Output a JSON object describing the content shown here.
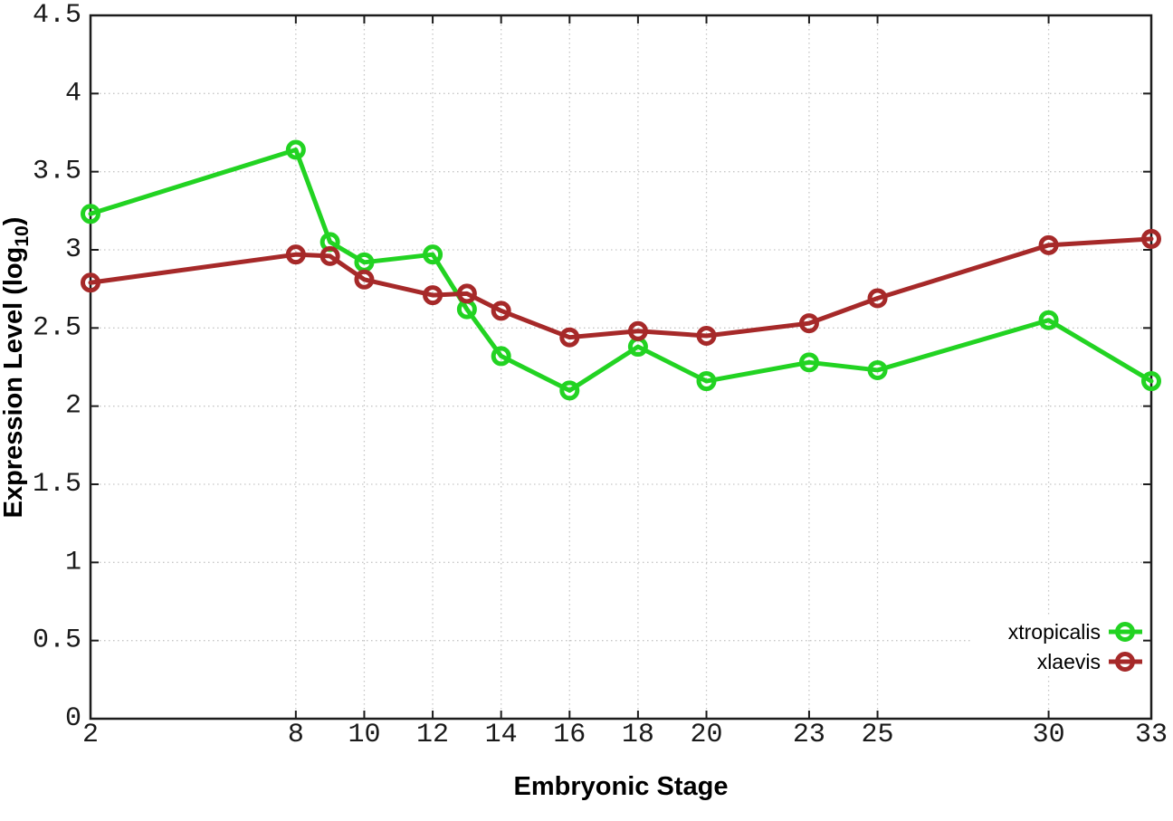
{
  "chart_data": {
    "type": "line",
    "title": "",
    "xlabel": "Embryonic Stage",
    "ylabel": "Expression Level (log10)",
    "ylabel_parts": {
      "prefix": "Expression Level (log",
      "sub": "10",
      "suffix": ")"
    },
    "x": [
      2,
      8,
      9,
      10,
      12,
      13,
      14,
      16,
      18,
      20,
      23,
      25,
      30,
      33
    ],
    "xticks": [
      2,
      8,
      10,
      12,
      14,
      16,
      18,
      20,
      23,
      25,
      30,
      33
    ],
    "yticks": [
      0,
      0.5,
      1,
      1.5,
      2,
      2.5,
      3,
      3.5,
      4,
      4.5
    ],
    "xlim": [
      2,
      33
    ],
    "ylim": [
      0,
      4.5
    ],
    "grid": true,
    "legend_position": "bottom-right-inside",
    "series": [
      {
        "name": "xtropicalis",
        "color": "#22d322",
        "marker": "open-circle",
        "values": [
          3.23,
          3.64,
          3.05,
          2.92,
          2.97,
          2.62,
          2.32,
          2.1,
          2.38,
          2.16,
          2.28,
          2.23,
          2.55,
          2.16
        ]
      },
      {
        "name": "xlaevis",
        "color": "#a62929",
        "marker": "open-circle",
        "values": [
          2.79,
          2.97,
          2.96,
          2.81,
          2.71,
          2.72,
          2.61,
          2.44,
          2.48,
          2.45,
          2.53,
          2.69,
          3.03,
          3.07
        ]
      }
    ]
  },
  "colors": {
    "background": "#ffffff",
    "grid": "#c6c6c6",
    "border": "#1c1c1c",
    "series_green": "#22d322",
    "series_red": "#a62929"
  }
}
